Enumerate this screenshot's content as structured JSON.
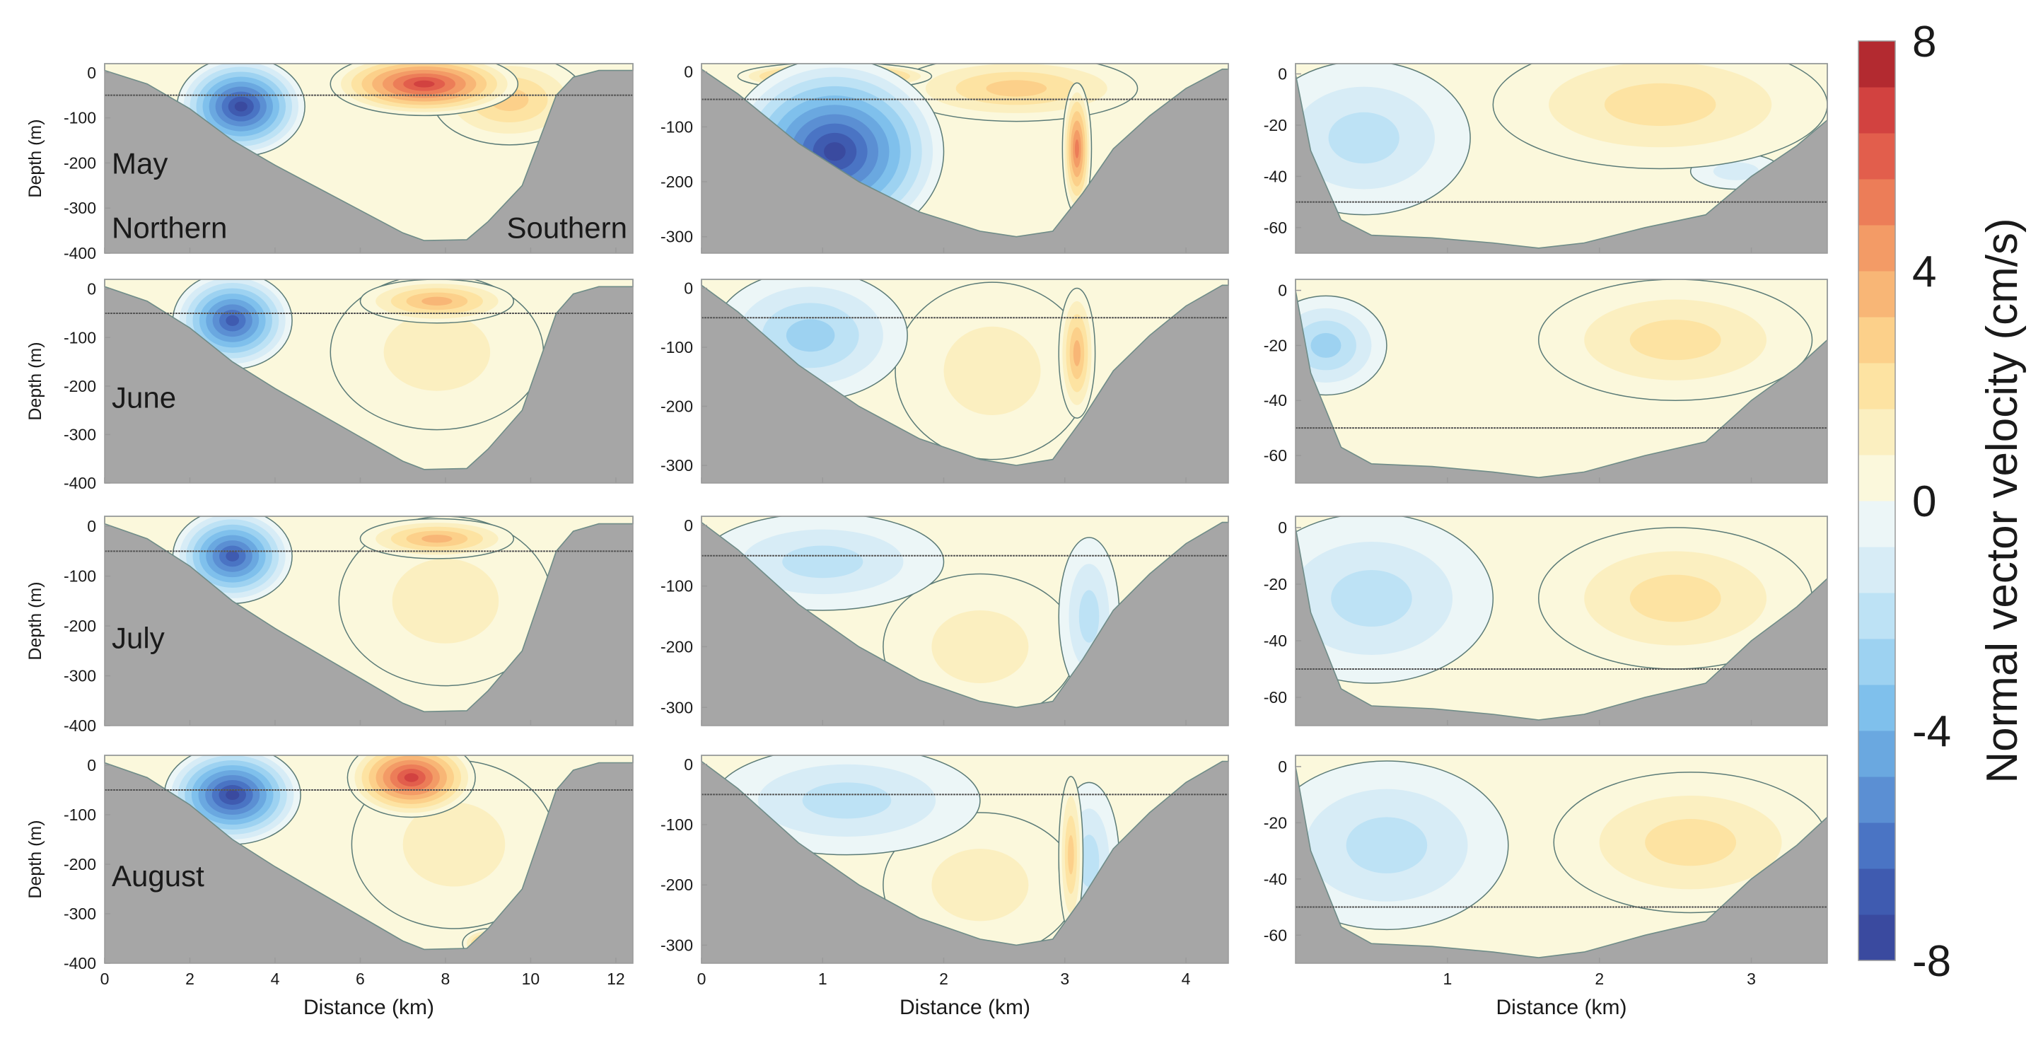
{
  "chart_data": {
    "type": "heatmap",
    "description_kind": "filled contour sections of normal velocity, 4 months x 3 transects",
    "rows": [
      "May",
      "June",
      "July",
      "August"
    ],
    "direction_labels": {
      "left": "Northern",
      "right": "Southern"
    },
    "columns": [
      {
        "id": "transect-1",
        "x_ticks": [
          0,
          2,
          4,
          6,
          8,
          10,
          12
        ],
        "xlim": [
          0,
          12.4
        ],
        "y_ticks": [
          0,
          -100,
          -200,
          -300,
          -400
        ],
        "ylim": [
          -400,
          20
        ],
        "xlabel": "Distance (km)",
        "ylabel": "Depth (m)",
        "reference_depth": -50,
        "bottom_profile": [
          [
            0,
            5
          ],
          [
            1,
            -25
          ],
          [
            2,
            -80
          ],
          [
            3,
            -150
          ],
          [
            4,
            -205
          ],
          [
            5,
            -255
          ],
          [
            6,
            -305
          ],
          [
            7,
            -355
          ],
          [
            7.5,
            -372
          ],
          [
            8.5,
            -370
          ],
          [
            9,
            -330
          ],
          [
            9.8,
            -250
          ],
          [
            10.2,
            -150
          ],
          [
            10.6,
            -50
          ],
          [
            11,
            -10
          ],
          [
            11.6,
            5
          ],
          [
            12.4,
            5
          ]
        ]
      },
      {
        "id": "transect-2",
        "x_ticks": [
          0,
          1,
          2,
          3,
          4
        ],
        "xlim": [
          0,
          4.35
        ],
        "y_ticks": [
          0,
          -100,
          -200,
          -300
        ],
        "ylim": [
          -330,
          15
        ],
        "xlabel": "Distance (km)",
        "ylabel": "",
        "reference_depth": -50,
        "bottom_profile": [
          [
            0,
            5
          ],
          [
            0.3,
            -40
          ],
          [
            0.8,
            -130
          ],
          [
            1.3,
            -200
          ],
          [
            1.8,
            -255
          ],
          [
            2.3,
            -290
          ],
          [
            2.6,
            -300
          ],
          [
            2.9,
            -290
          ],
          [
            3.15,
            -220
          ],
          [
            3.4,
            -140
          ],
          [
            3.7,
            -80
          ],
          [
            4.0,
            -30
          ],
          [
            4.3,
            5
          ],
          [
            4.35,
            5
          ]
        ]
      },
      {
        "id": "transect-3",
        "x_ticks": [
          1,
          2,
          3
        ],
        "xlim": [
          0,
          3.5
        ],
        "y_ticks": [
          0,
          -20,
          -40,
          -60
        ],
        "ylim": [
          -70,
          4
        ],
        "xlabel": "Distance (km)",
        "ylabel": "",
        "reference_depth": -50,
        "bottom_profile": [
          [
            0,
            0
          ],
          [
            0.1,
            -30
          ],
          [
            0.3,
            -57
          ],
          [
            0.5,
            -63
          ],
          [
            0.9,
            -64
          ],
          [
            1.3,
            -66
          ],
          [
            1.6,
            -68
          ],
          [
            1.9,
            -66
          ],
          [
            2.3,
            -60
          ],
          [
            2.7,
            -55
          ],
          [
            3.0,
            -40
          ],
          [
            3.3,
            -28
          ],
          [
            3.5,
            -18
          ]
        ]
      }
    ],
    "series": [
      {
        "row": "May",
        "column": "transect-1",
        "cores": [
          {
            "x": 3.2,
            "depth": -75,
            "value": -7.5,
            "rx": 1.5,
            "ry": 110
          },
          {
            "x": 7.5,
            "depth": -25,
            "value": 6.5,
            "rx": 2.2,
            "ry": 70
          },
          {
            "x": 9.5,
            "depth": -60,
            "value": 2.5,
            "rx": 1.8,
            "ry": 100
          }
        ]
      },
      {
        "row": "May",
        "column": "transect-2",
        "cores": [
          {
            "x": 1.1,
            "depth": -145,
            "value": -8,
            "rx": 0.9,
            "ry": 170
          },
          {
            "x": 1.1,
            "depth": -8,
            "value": 7,
            "rx": 0.8,
            "ry": 25
          },
          {
            "x": 3.1,
            "depth": -140,
            "value": 5,
            "rx": 0.12,
            "ry": 120
          },
          {
            "x": 2.6,
            "depth": -30,
            "value": 2.5,
            "rx": 1.0,
            "ry": 60
          }
        ]
      },
      {
        "row": "May",
        "column": "transect-3",
        "cores": [
          {
            "x": 0.45,
            "depth": -25,
            "value": -2.2,
            "rx": 0.7,
            "ry": 30
          },
          {
            "x": 2.4,
            "depth": -12,
            "value": 1.8,
            "rx": 1.1,
            "ry": 25
          },
          {
            "x": 2.9,
            "depth": -38,
            "value": -1.6,
            "rx": 0.3,
            "ry": 7
          }
        ]
      },
      {
        "row": "June",
        "column": "transect-1",
        "cores": [
          {
            "x": 3.0,
            "depth": -65,
            "value": -7,
            "rx": 1.4,
            "ry": 100
          },
          {
            "x": 7.8,
            "depth": -25,
            "value": 3.8,
            "rx": 1.8,
            "ry": 45
          },
          {
            "x": 7.8,
            "depth": -130,
            "value": 1.2,
            "rx": 2.5,
            "ry": 160
          }
        ]
      },
      {
        "row": "June",
        "column": "transect-2",
        "cores": [
          {
            "x": 0.9,
            "depth": -80,
            "value": -2.5,
            "rx": 0.8,
            "ry": 110
          },
          {
            "x": 3.1,
            "depth": -110,
            "value": 3.6,
            "rx": 0.15,
            "ry": 110
          },
          {
            "x": 2.4,
            "depth": -140,
            "value": 1.0,
            "rx": 0.8,
            "ry": 150
          }
        ]
      },
      {
        "row": "June",
        "column": "transect-3",
        "cores": [
          {
            "x": 0.2,
            "depth": -20,
            "value": -2.5,
            "rx": 0.4,
            "ry": 18
          },
          {
            "x": 2.5,
            "depth": -18,
            "value": 2.3,
            "rx": 0.9,
            "ry": 22
          }
        ]
      },
      {
        "row": "July",
        "column": "transect-1",
        "cores": [
          {
            "x": 3.0,
            "depth": -60,
            "value": -7,
            "rx": 1.4,
            "ry": 95
          },
          {
            "x": 7.8,
            "depth": -25,
            "value": 3.5,
            "rx": 1.8,
            "ry": 40
          },
          {
            "x": 8.0,
            "depth": -150,
            "value": 1.1,
            "rx": 2.5,
            "ry": 170
          }
        ]
      },
      {
        "row": "July",
        "column": "transect-2",
        "cores": [
          {
            "x": 1.0,
            "depth": -60,
            "value": -1.8,
            "rx": 1.0,
            "ry": 80
          },
          {
            "x": 3.2,
            "depth": -150,
            "value": -2.2,
            "rx": 0.25,
            "ry": 130
          },
          {
            "x": 2.3,
            "depth": -200,
            "value": 1.0,
            "rx": 0.8,
            "ry": 120
          }
        ]
      },
      {
        "row": "July",
        "column": "transect-3",
        "cores": [
          {
            "x": 0.5,
            "depth": -25,
            "value": -2.0,
            "rx": 0.8,
            "ry": 30
          },
          {
            "x": 2.5,
            "depth": -25,
            "value": 2.0,
            "rx": 0.9,
            "ry": 25
          }
        ]
      },
      {
        "row": "August",
        "column": "transect-1",
        "cores": [
          {
            "x": 3.0,
            "depth": -60,
            "value": -7.8,
            "rx": 1.6,
            "ry": 100
          },
          {
            "x": 7.2,
            "depth": -25,
            "value": 7,
            "rx": 1.5,
            "ry": 80
          },
          {
            "x": 8.2,
            "depth": -160,
            "value": 1.2,
            "rx": 2.4,
            "ry": 170
          },
          {
            "x": 9.0,
            "depth": -360,
            "value": 4.5,
            "rx": 0.6,
            "ry": 30
          }
        ]
      },
      {
        "row": "August",
        "column": "transect-2",
        "cores": [
          {
            "x": 1.2,
            "depth": -60,
            "value": -2.2,
            "rx": 1.1,
            "ry": 90
          },
          {
            "x": 3.2,
            "depth": -160,
            "value": -2.4,
            "rx": 0.25,
            "ry": 130
          },
          {
            "x": 3.05,
            "depth": -150,
            "value": 3.0,
            "rx": 0.1,
            "ry": 130
          },
          {
            "x": 2.3,
            "depth": -200,
            "value": 1.0,
            "rx": 0.8,
            "ry": 120
          }
        ]
      },
      {
        "row": "August",
        "column": "transect-3",
        "cores": [
          {
            "x": 0.6,
            "depth": -28,
            "value": -2.3,
            "rx": 0.8,
            "ry": 30
          },
          {
            "x": 2.6,
            "depth": -27,
            "value": 2.3,
            "rx": 0.9,
            "ry": 25
          }
        ]
      }
    ],
    "colorbar": {
      "title": "Normal vector velocity (cm/s)",
      "ticks": [
        8,
        4,
        0,
        -4,
        -8
      ],
      "min": -8,
      "max": 8,
      "levels": 20,
      "colors": [
        "#3a4a9f",
        "#3f5bb0",
        "#4a74c4",
        "#5b8fd3",
        "#6aa8e0",
        "#7fc0ec",
        "#9dd2f1",
        "#bde2f5",
        "#d7ecf6",
        "#ecf6f7",
        "#fbf8dc",
        "#fbefc0",
        "#fde3a2",
        "#fcd08a",
        "#f8b676",
        "#f39b66",
        "#ec7d58",
        "#e25e4c",
        "#d24240",
        "#b32a30"
      ]
    }
  }
}
